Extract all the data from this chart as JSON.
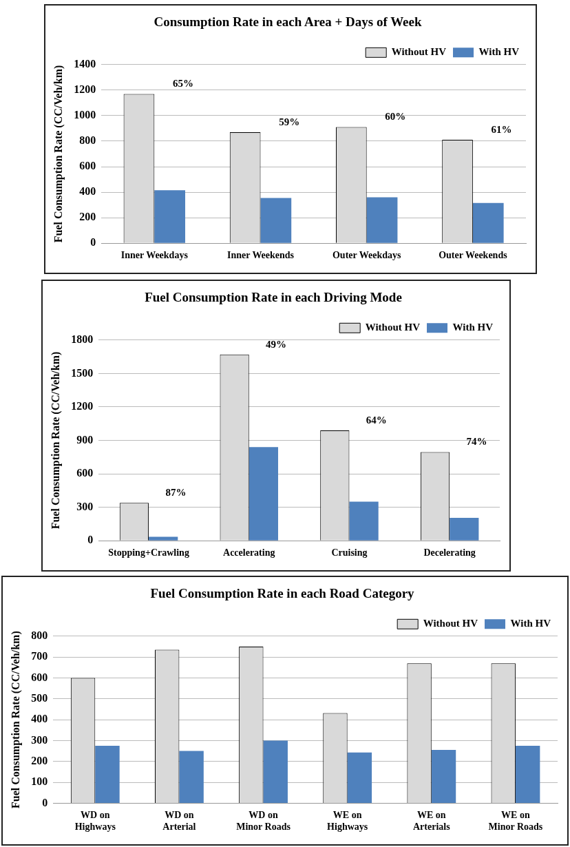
{
  "chart_data": [
    {
      "type": "bar",
      "title": "Consumption Rate in each Area + Days of Week",
      "ylabel": "Fuel Consumption Rate (CC/Veh/km)",
      "categories": [
        "Inner Weekdays",
        "Inner Weekends",
        "Outer Weekdays",
        "Outer Weekends"
      ],
      "series": [
        {
          "name": "Without HV",
          "color": "#d9d9d9",
          "values": [
            1170,
            870,
            910,
            810
          ]
        },
        {
          "name": "With HV",
          "color": "#4f81bd",
          "values": [
            415,
            355,
            360,
            315
          ]
        }
      ],
      "ylim": [
        0,
        1400
      ],
      "yticks": [
        0,
        200,
        400,
        600,
        800,
        1000,
        1200,
        1400
      ],
      "grid": "y",
      "legend": "top right",
      "annotations": [
        "65%",
        "59%",
        "60%",
        "61%"
      ]
    },
    {
      "type": "bar",
      "title": "Fuel Consumption Rate in each Driving Mode",
      "ylabel": "Fuel Consumption Rate (CC/Veh/km)",
      "categories": [
        "Stopping+Crawling",
        "Accelerating",
        "Cruising",
        "Decelerating"
      ],
      "series": [
        {
          "name": "Without HV",
          "color": "#d9d9d9",
          "values": [
            340,
            1670,
            990,
            795
          ]
        },
        {
          "name": "With HV",
          "color": "#4f81bd",
          "values": [
            35,
            840,
            350,
            205
          ]
        }
      ],
      "ylim": [
        0,
        1800
      ],
      "yticks": [
        0,
        300,
        600,
        900,
        1200,
        1500,
        1800
      ],
      "grid": "y",
      "legend": "top right",
      "annotations": [
        "87%",
        "49%",
        "64%",
        "74%"
      ]
    },
    {
      "type": "bar",
      "title": "Fuel Consumption Rate in each Road Category",
      "ylabel": "Fuel Consumption Rate (CC/Veh/km)",
      "categories": [
        "WD on\nHighways",
        "WD on\nArterial",
        "WD on\nMinor Roads",
        "WE on\nHighways",
        "WE on\nArterials",
        "WE on\nMinor Roads"
      ],
      "series": [
        {
          "name": "Without HV",
          "color": "#d9d9d9",
          "values": [
            600,
            735,
            750,
            432,
            670,
            670
          ]
        },
        {
          "name": "With HV",
          "color": "#4f81bd",
          "values": [
            275,
            250,
            300,
            243,
            255,
            275
          ]
        }
      ],
      "ylim": [
        0,
        800
      ],
      "yticks": [
        0,
        100,
        200,
        300,
        400,
        500,
        600,
        700,
        800
      ],
      "grid": "y",
      "legend": "top right"
    }
  ]
}
